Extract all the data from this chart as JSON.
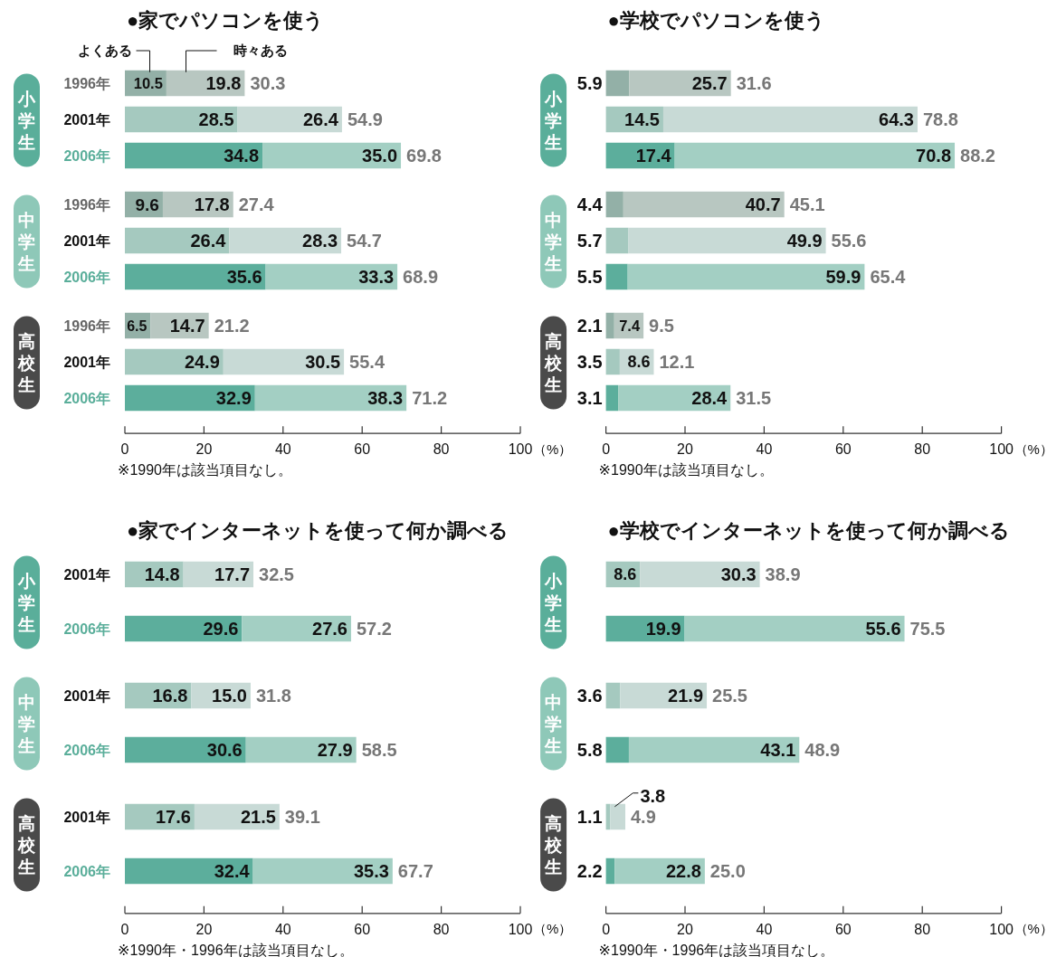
{
  "chart_data": [
    {
      "type": "bar",
      "orientation": "horizontal",
      "stacked": true,
      "title": "●家でパソコンを使う",
      "ylabel": "小学生",
      "categories": [
        "1996年",
        "2001年",
        "2006年"
      ],
      "series": [
        {
          "name": "よくある",
          "colors": [
            "#93b0a7",
            "#a5c9bf",
            "#5cae9c"
          ],
          "values": [
            10.5,
            28.5,
            34.8
          ],
          "value_labels": [
            "10.5",
            "28.5",
            "34.8"
          ]
        },
        {
          "name": "時々ある",
          "colors": [
            "#b8c7c1",
            "#c8dad6",
            "#a3cfc3"
          ],
          "values": [
            19.8,
            26.4,
            35.0
          ],
          "value_labels": [
            "19.8",
            "26.4",
            "35.0"
          ]
        }
      ],
      "totals": [
        "30.3",
        "54.9",
        "69.8"
      ],
      "xlim": [
        0,
        100
      ],
      "tick_labels": "y"
    },
    {
      "type": "bar",
      "orientation": "horizontal",
      "stacked": true,
      "ylabel": "中学生",
      "categories": [
        "1996年",
        "2001年",
        "2006年"
      ],
      "series": [
        {
          "colors": [
            "#93b0a7",
            "#a5c9bf",
            "#5cae9c"
          ],
          "values": [
            9.6,
            26.4,
            35.6
          ],
          "value_labels": [
            "9.6",
            "26.4",
            "35.6"
          ]
        },
        {
          "colors": [
            "#b8c7c1",
            "#c8dad6",
            "#a3cfc3"
          ],
          "values": [
            17.8,
            28.3,
            33.3
          ],
          "value_labels": [
            "17.8",
            "28.3",
            "33.3"
          ]
        }
      ],
      "totals": [
        "27.4",
        "54.7",
        "68.9"
      ],
      "xlim": [
        0,
        100
      ],
      "tick_labels": "y"
    },
    {
      "type": "bar",
      "orientation": "horizontal",
      "stacked": true,
      "ylabel": "高校生",
      "xlabel": "（%）",
      "categories": [
        "1996年",
        "2001年",
        "2006年"
      ],
      "series": [
        {
          "colors": [
            "#93b0a7",
            "#a5c9bf",
            "#5cae9c"
          ],
          "values": [
            6.5,
            24.9,
            32.9
          ],
          "value_labels": [
            "6.5",
            "24.9",
            "32.9"
          ]
        },
        {
          "colors": [
            "#b8c7c1",
            "#c8dad6",
            "#a3cfc3"
          ],
          "values": [
            14.7,
            30.5,
            38.3
          ],
          "value_labels": [
            "14.7",
            "30.5",
            "38.3"
          ]
        }
      ],
      "totals": [
        "21.2",
        "55.4",
        "71.2"
      ],
      "xlim": [
        0,
        100
      ],
      "xticks": [
        0,
        20,
        40,
        60,
        80,
        100
      ],
      "annotations": [
        "※1990年は該当項目なし。"
      ]
    },
    {
      "type": "bar",
      "orientation": "horizontal",
      "stacked": true,
      "title": "●学校でパソコンを使う",
      "ylabel": "小学生",
      "categories": [
        "1996年",
        "2001年",
        "2006年"
      ],
      "series": [
        {
          "colors": [
            "#93b0a7",
            "#a5c9bf",
            "#5cae9c"
          ],
          "values": [
            5.9,
            14.5,
            17.4
          ],
          "value_labels": [
            "5.9",
            "14.5",
            "17.4"
          ]
        },
        {
          "colors": [
            "#b8c7c1",
            "#c8dad6",
            "#a3cfc3"
          ],
          "values": [
            25.7,
            64.3,
            70.8
          ],
          "value_labels": [
            "25.7",
            "64.3",
            "70.8"
          ]
        }
      ],
      "totals": [
        "31.6",
        "78.8",
        "88.2"
      ],
      "xlim": [
        0,
        100
      ],
      "tick_labels": false
    },
    {
      "type": "bar",
      "orientation": "horizontal",
      "stacked": true,
      "ylabel": "中学生",
      "categories": [
        "1996年",
        "2001年",
        "2006年"
      ],
      "series": [
        {
          "colors": [
            "#93b0a7",
            "#a5c9bf",
            "#5cae9c"
          ],
          "values": [
            4.4,
            5.7,
            5.5
          ],
          "value_labels": [
            "4.4",
            "5.7",
            "5.5"
          ]
        },
        {
          "colors": [
            "#b8c7c1",
            "#c8dad6",
            "#a3cfc3"
          ],
          "values": [
            40.7,
            49.9,
            59.9
          ],
          "value_labels": [
            "40.7",
            "49.9",
            "59.9"
          ]
        }
      ],
      "totals": [
        "45.1",
        "55.6",
        "65.4"
      ],
      "xlim": [
        0,
        100
      ],
      "tick_labels": false
    },
    {
      "type": "bar",
      "orientation": "horizontal",
      "stacked": true,
      "ylabel": "高校生",
      "xlabel": "（%）",
      "categories": [
        "1996年",
        "2001年",
        "2006年"
      ],
      "series": [
        {
          "colors": [
            "#93b0a7",
            "#a5c9bf",
            "#5cae9c"
          ],
          "values": [
            2.1,
            3.5,
            3.1
          ],
          "value_labels": [
            "2.1",
            "3.5",
            "3.1"
          ]
        },
        {
          "colors": [
            "#b8c7c1",
            "#c8dad6",
            "#a3cfc3"
          ],
          "values": [
            7.4,
            8.6,
            28.4
          ],
          "value_labels": [
            "7.4",
            "8.6",
            "28.4"
          ]
        }
      ],
      "totals": [
        "9.5",
        "12.1",
        "31.5"
      ],
      "xlim": [
        0,
        100
      ],
      "xticks": [
        0,
        20,
        40,
        60,
        80,
        100
      ],
      "tick_labels": "x",
      "annotations": [
        "※1990年は該当項目なし。"
      ]
    },
    {
      "type": "bar",
      "orientation": "horizontal",
      "stacked": true,
      "title": "●家でインターネットを使って何か調べる",
      "ylabel": "小学生",
      "categories": [
        "2001年",
        "2006年"
      ],
      "series": [
        {
          "colors": [
            "#a5c9bf",
            "#5cae9c"
          ],
          "values": [
            14.8,
            29.6
          ],
          "value_labels": [
            "14.8",
            "29.6"
          ]
        },
        {
          "colors": [
            "#c8dad6",
            "#a3cfc3"
          ],
          "values": [
            17.7,
            27.6
          ],
          "value_labels": [
            "17.7",
            "27.6"
          ]
        }
      ],
      "totals": [
        "32.5",
        "57.2"
      ],
      "xlim": [
        0,
        100
      ],
      "tick_labels": "y"
    },
    {
      "type": "bar",
      "orientation": "horizontal",
      "stacked": true,
      "ylabel": "中学生",
      "categories": [
        "2001年",
        "2006年"
      ],
      "series": [
        {
          "colors": [
            "#a5c9bf",
            "#5cae9c"
          ],
          "values": [
            16.8,
            30.6
          ],
          "value_labels": [
            "16.8",
            "30.6"
          ]
        },
        {
          "colors": [
            "#c8dad6",
            "#a3cfc3"
          ],
          "values": [
            15.0,
            27.9
          ],
          "value_labels": [
            "15.0",
            "27.9"
          ]
        }
      ],
      "totals": [
        "31.8",
        "58.5"
      ],
      "xlim": [
        0,
        100
      ],
      "tick_labels": "y"
    },
    {
      "type": "bar",
      "orientation": "horizontal",
      "stacked": true,
      "ylabel": "高校生",
      "xlabel": "（%）",
      "categories": [
        "2001年",
        "2006年"
      ],
      "series": [
        {
          "colors": [
            "#a5c9bf",
            "#5cae9c"
          ],
          "values": [
            17.6,
            32.4
          ],
          "value_labels": [
            "17.6",
            "32.4"
          ]
        },
        {
          "colors": [
            "#c8dad6",
            "#a3cfc3"
          ],
          "values": [
            21.5,
            35.3
          ],
          "value_labels": [
            "21.5",
            "35.3"
          ]
        }
      ],
      "totals": [
        "39.1",
        "67.7"
      ],
      "xlim": [
        0,
        100
      ],
      "xticks": [
        0,
        20,
        40,
        60,
        80,
        100
      ],
      "annotations": [
        "※1990年・1996年は該当項目なし。"
      ]
    },
    {
      "type": "bar",
      "orientation": "horizontal",
      "stacked": true,
      "title": "●学校でインターネットを使って何か調べる",
      "ylabel": "小学生",
      "categories": [
        "2001年",
        "2006年"
      ],
      "series": [
        {
          "colors": [
            "#a5c9bf",
            "#5cae9c"
          ],
          "values": [
            8.6,
            19.9
          ],
          "value_labels": [
            "8.6",
            "19.9"
          ]
        },
        {
          "colors": [
            "#c8dad6",
            "#a3cfc3"
          ],
          "values": [
            30.3,
            55.6
          ],
          "value_labels": [
            "30.3",
            "55.6"
          ]
        }
      ],
      "totals": [
        "38.9",
        "75.5"
      ],
      "xlim": [
        0,
        100
      ],
      "tick_labels": false
    },
    {
      "type": "bar",
      "orientation": "horizontal",
      "stacked": true,
      "ylabel": "中学生",
      "categories": [
        "2001年",
        "2006年"
      ],
      "series": [
        {
          "colors": [
            "#a5c9bf",
            "#5cae9c"
          ],
          "values": [
            3.6,
            5.8
          ],
          "value_labels": [
            "3.6",
            "5.8"
          ]
        },
        {
          "colors": [
            "#c8dad6",
            "#a3cfc3"
          ],
          "values": [
            21.9,
            43.1
          ],
          "value_labels": [
            "21.9",
            "43.1"
          ]
        }
      ],
      "totals": [
        "25.5",
        "48.9"
      ],
      "xlim": [
        0,
        100
      ],
      "tick_labels": false
    },
    {
      "type": "bar",
      "orientation": "horizontal",
      "stacked": true,
      "ylabel": "高校生",
      "xlabel": "（%）",
      "categories": [
        "2001年",
        "2006年"
      ],
      "series": [
        {
          "colors": [
            "#a5c9bf",
            "#5cae9c"
          ],
          "values": [
            1.1,
            2.2
          ],
          "value_labels": [
            "1.1",
            "2.2"
          ]
        },
        {
          "colors": [
            "#c8dad6",
            "#a3cfc3"
          ],
          "values": [
            3.8,
            22.8
          ],
          "value_labels": [
            "3.8",
            "22.8"
          ]
        }
      ],
      "totals": [
        "4.9",
        "25.0"
      ],
      "xlim": [
        0,
        100
      ],
      "xticks": [
        0,
        20,
        40,
        60,
        80,
        100
      ],
      "tick_labels": "x",
      "annotations": [
        "※1990年・1996年は該当項目なし。"
      ]
    }
  ]
}
